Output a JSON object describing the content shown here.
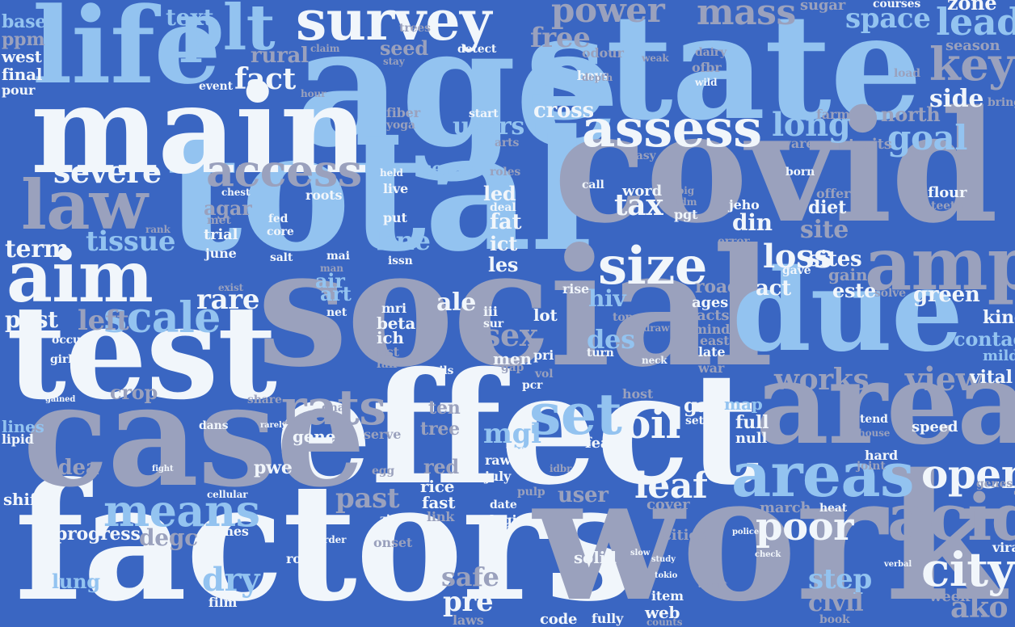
{
  "palette": {
    "background": "#3a66c2",
    "white": "#f1f6fb",
    "light_blue": "#93c3f0",
    "grey": "#9aa1bd"
  },
  "words": {
    "age": "age",
    "state": "state",
    "total": "total",
    "covid": "covid",
    "social": "social",
    "effect": "effect",
    "factors": "factors",
    "work": "work",
    "case": "case",
    "test": "test",
    "main": "main",
    "life": "life",
    "due": "due",
    "area": "area",
    "areas": "areas",
    "acid": "acid",
    "amp": "amp",
    "plt": "plt",
    "survey": "survey",
    "law": "law",
    "aim": "aim",
    "assess": "assess",
    "access": "access",
    "means": "means",
    "size": "size",
    "oil": "oil",
    "set": "set",
    "rats": "rats",
    "city": "city",
    "poor": "poor",
    "leaf": "leaf",
    "dry": "dry",
    "scale": "scale",
    "severe": "severe",
    "tissue": "tissue",
    "works": "works",
    "view": "view",
    "open": "open",
    "goal": "goal",
    "long": "long",
    "key": "key",
    "lead": "lead",
    "space": "space",
    "mass": "mass",
    "power": "power",
    "text": "text",
    "fact": "fact",
    "free": "free",
    "users": "users",
    "tax": "tax",
    "loss": "loss",
    "sites": "sites",
    "site": "site",
    "ale": "ale",
    "line": "line",
    "rare": "rare",
    "left": "left",
    "post": "post",
    "term": "term",
    "cross": "cross",
    "side": "side",
    "mgl": "mgl",
    "des": "des",
    "sex": "sex",
    "past": "past",
    "safe": "safe",
    "pre": "pre",
    "step": "step",
    "civil": "civil",
    "idea": "idea",
    "progress": "progress",
    "lung": "lung",
    "degc": "degc",
    "ako": "ako",
    "zone": "zone",
    "base": "base",
    "ppm": "ppm",
    "west": "west",
    "final": "final",
    "rural": "rural",
    "seed": "seed",
    "north": "north",
    "green": "green",
    "hiv": "hiv",
    "contact": "contact",
    "kind": "kind",
    "este": "este",
    "act": "act",
    "din": "din",
    "gain": "gain",
    "diet": "diet",
    "rice": "rice",
    "fast": "fast",
    "red": "red",
    "fat": "fat",
    "led": "led",
    "ict": "ict",
    "les": "les",
    "gas": "gas",
    "map": "map",
    "full": "full",
    "null": "null",
    "fear": "fear",
    "cover": "cover",
    "web": "web",
    "item": "item",
    "crop": "crop",
    "sense": "sense",
    "agar": "agar",
    "trial": "trial",
    "june": "june",
    "air": "air",
    "art": "art",
    "roots": "roots",
    "gene": "gene",
    "pwe": "pwe",
    "tree": "tree",
    "ten": "ten",
    "beta": "beta",
    "ich": "ich",
    "mri": "mri",
    "lot": "lot",
    "user": "user",
    "men": "men",
    "cities": "cities",
    "march": "march",
    "solid": "solid",
    "logic": "logic",
    "code": "code",
    "week": "week",
    "vital": "vital",
    "mild": "mild",
    "speed": "speed",
    "viral": "viral",
    "road": "road",
    "ages": "ages",
    "acts": "acts",
    "late": "late",
    "east": "east",
    "war": "war",
    "lines": "lines",
    "shift": "shift",
    "zones": "zones",
    "film": "film",
    "rank": "rank",
    "sugar": "sugar",
    "courses": "courses",
    "bring": "bring",
    "season": "season",
    "odour": "odour",
    "boys": "boys",
    "fiber": "fiber",
    "yoga": "yoga",
    "start": "start",
    "flour": "flour",
    "teeth": "teeth",
    "word": "word",
    "call": "call",
    "born": "born",
    "offer": "offer",
    "farm": "farm",
    "aware": "aware",
    "traits": "traits",
    "pgt": "pgt",
    "jeho": "jeho",
    "error": "error",
    "gave": "gave",
    "solve": "solve",
    "hard": "hard",
    "joint": "joint",
    "tend": "tend",
    "house": "house",
    "heat": "heat",
    "genes": "genes",
    "raw": "raw",
    "the": "the",
    "july": "july",
    "date": "date",
    "pulp": "pulp",
    "onset": "onset",
    "room": "room",
    "border": "border",
    "laws": "laws",
    "fully": "fully",
    "counts": "counts",
    "book": "book",
    "link": "link",
    "zinc": "zinc",
    "serve": "serve",
    "egg": "egg",
    "oils": "oils",
    "list": "list",
    "fair": "fair",
    "iii": "iii",
    "sur": "sur",
    "pri": "pri",
    "gap": "gap",
    "vol": "vol",
    "pcr": "pcr",
    "host": "host",
    "turn": "turn",
    "top": "top",
    "rise": "rise",
    "mind": "mind",
    "sets": "sets",
    "fed": "fed",
    "core": "core",
    "salt": "salt",
    "mai": "mai",
    "net": "net",
    "put": "put",
    "issn": "issn",
    "deal": "deal",
    "live": "live",
    "held": "held",
    "roles": "roles",
    "arts": "arts",
    "easy": "easy",
    "event": "event",
    "hour": "hour",
    "dairy": "dairy",
    "ofbr": "ofbr",
    "wild": "wild",
    "load": "load",
    "weak": "weak",
    "depth": "depth",
    "detect": "detect",
    "claim": "claim",
    "trees": "trees",
    "stay": "stay",
    "girls": "girls",
    "occurs": "occurs",
    "pour": "pour",
    "lipid": "lipid",
    "gained": "gained",
    "chest": "chest",
    "met": "met",
    "man": "man",
    "exist": "exist",
    "share": "share",
    "dna": "dna",
    "tea": "tea",
    "dans": "dans",
    "rarely": "rarely",
    "cellular": "cellular",
    "fight": "fight",
    "idbr": "idbr",
    "tdm": "tdm",
    "big": "big",
    "draw": "draw",
    "neck": "neck",
    "slow": "slow",
    "police": "police",
    "check": "check",
    "verbal": "verbal",
    "tokio": "tokio",
    "study": "study",
    "accept": "accept"
  }
}
